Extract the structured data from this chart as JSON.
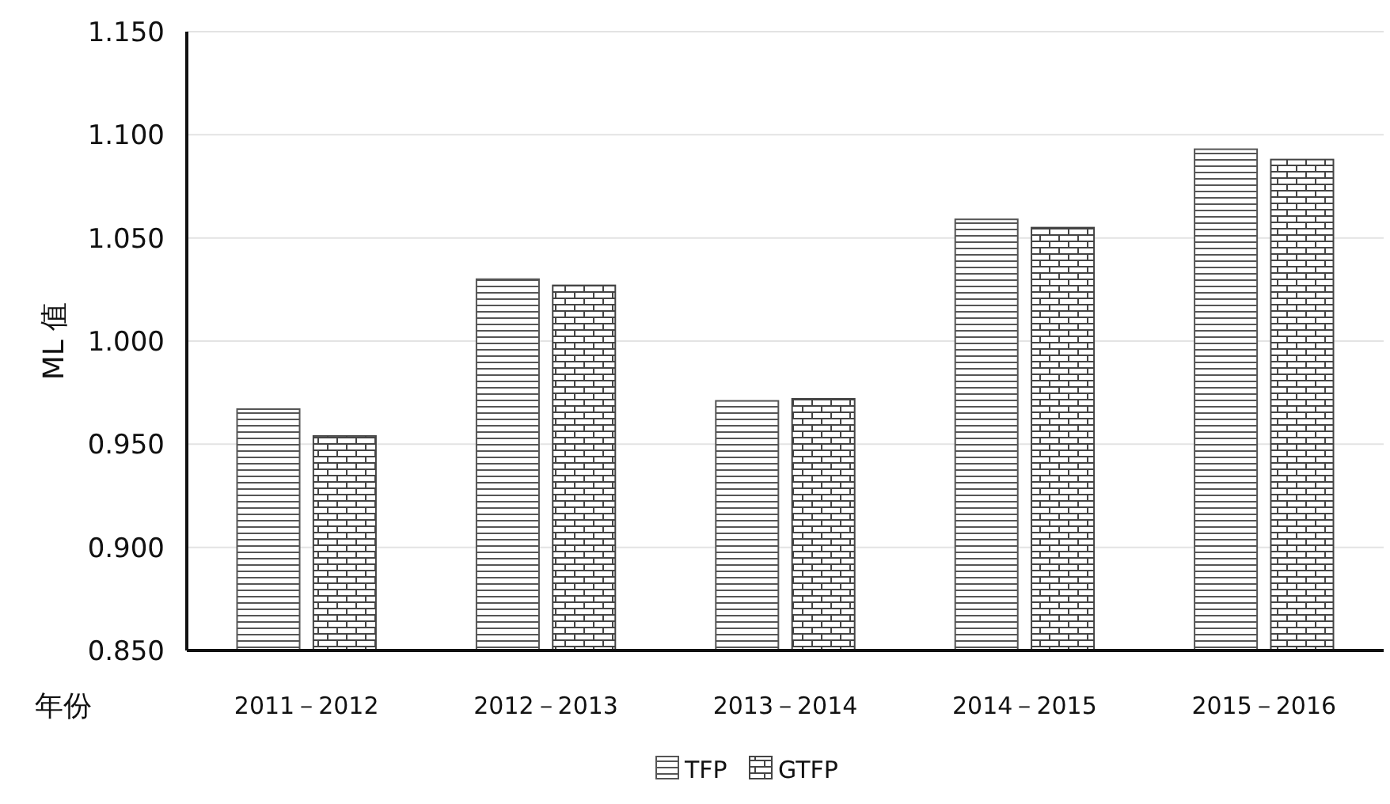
{
  "chart_data": {
    "type": "bar",
    "xlabel": "年份",
    "ylabel": "ML 值",
    "categories": [
      "2011－2012",
      "2012－2013",
      "2013－2014",
      "2014－2015",
      "2015－2016"
    ],
    "series": [
      {
        "name": "TFP",
        "color": "#555555",
        "values": [
          0.967,
          1.03,
          0.971,
          1.059,
          1.093
        ]
      },
      {
        "name": "GTFP",
        "color": "#444444",
        "values": [
          0.954,
          1.027,
          0.972,
          1.055,
          1.088
        ]
      }
    ],
    "ylim": [
      0.85,
      1.15
    ],
    "yticks": [
      {
        "value": 0.85,
        "label": "0.850"
      },
      {
        "value": 0.9,
        "label": "0.900"
      },
      {
        "value": 0.95,
        "label": "0.950"
      },
      {
        "value": 1.0,
        "label": "1.000"
      },
      {
        "value": 1.05,
        "label": "1.050"
      },
      {
        "value": 1.1,
        "label": "1.100"
      },
      {
        "value": 1.15,
        "label": "1.150"
      }
    ],
    "grid": "y",
    "legend": "bottom"
  }
}
